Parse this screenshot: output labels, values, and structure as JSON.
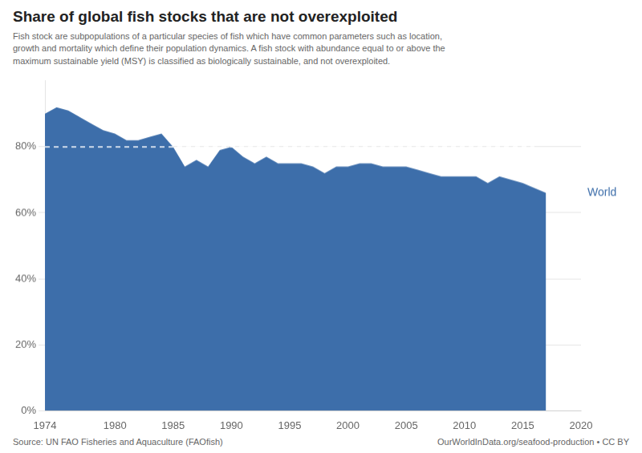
{
  "chart_data": {
    "type": "area",
    "title": "Share of global fish stocks that are not overexploited",
    "subtitle": "Fish stock are subpopulations of a particular species of fish which have common parameters such as location,\ngrowth and mortality which define their population dynamics. A fish stock with abundance equal to or above the\nmaximum sustainable yield (MSY) is classified as biologically sustainable, and not overexploited.",
    "source": [
      "Source: UN FAO Fisheries and Aquaculture (FAOfish)",
      "OurWorldInData.org/seafood-production • CC BY"
    ],
    "x": [
      1974,
      1975,
      1976,
      1977,
      1978,
      1979,
      1980,
      1981,
      1982,
      1983,
      1984,
      1985,
      1986,
      1987,
      1988,
      1989,
      1990,
      1991,
      1992,
      1993,
      1994,
      1995,
      1996,
      1997,
      1998,
      1999,
      2000,
      2001,
      2002,
      2003,
      2004,
      2005,
      2006,
      2007,
      2008,
      2009,
      2010,
      2011,
      2012,
      2013,
      2015,
      2017
    ],
    "series": [
      {
        "name": "World",
        "color": "#3d6eaa",
        "values": [
          0.9,
          0.92,
          0.91,
          0.89,
          0.87,
          0.85,
          0.84,
          0.82,
          0.82,
          0.83,
          0.84,
          0.8,
          0.74,
          0.76,
          0.74,
          0.79,
          0.8,
          0.77,
          0.75,
          0.77,
          0.75,
          0.75,
          0.75,
          0.74,
          0.72,
          0.74,
          0.74,
          0.75,
          0.75,
          0.74,
          0.74,
          0.74,
          0.73,
          0.72,
          0.71,
          0.71,
          0.71,
          0.71,
          0.69,
          0.71,
          0.69,
          0.66
        ]
      }
    ],
    "xlim": [
      1974,
      2020
    ],
    "xticks": [
      1974,
      1980,
      1985,
      1990,
      1995,
      2000,
      2005,
      2010,
      2015,
      2020
    ],
    "ylim": [
      0,
      1.0
    ],
    "yticks": [
      {
        "value": 0.0,
        "label": "0%"
      },
      {
        "value": 0.2,
        "label": "20%"
      },
      {
        "value": 0.4,
        "label": "40%"
      },
      {
        "value": 0.6,
        "label": "60%"
      },
      {
        "value": 0.8,
        "label": "80%"
      }
    ],
    "grid": "y",
    "hline": {
      "value": 0.8,
      "x": [
        1974,
        2016
      ],
      "color": "#ffffff",
      "line_style": "dashed"
    }
  }
}
